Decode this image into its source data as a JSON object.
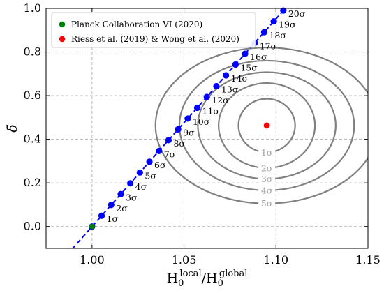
{
  "chart_data": {
    "type": "scatter",
    "xlabel": {
      "base": "H",
      "sub": "0",
      "sup_num": "local",
      "slash": "/",
      "sup_den": "global"
    },
    "ylabel": "δ̃",
    "xlim": [
      0.975,
      1.15
    ],
    "ylim": [
      -0.1,
      1.0
    ],
    "x_ticks": [
      1.0,
      1.05,
      1.1,
      1.15
    ],
    "x_tick_labels": [
      "1.00",
      "1.05",
      "1.10",
      "1.15"
    ],
    "y_ticks": [
      0.0,
      0.2,
      0.4,
      0.6,
      0.8,
      1.0
    ],
    "y_tick_labels": [
      "0.0",
      "0.2",
      "0.4",
      "0.6",
      "0.8",
      "1.0"
    ],
    "grid": true,
    "legend_position": "top-left",
    "legend": [
      {
        "label": "Planck Collaboration VI (2020)",
        "color": "#008000"
      },
      {
        "label": "Riess et al. (2019) & Wong et al. (2020)",
        "color": "#ff0000"
      }
    ],
    "planck_point": {
      "x": 1.0,
      "y": 0.0,
      "color": "#008000"
    },
    "shoes_point": {
      "x": 1.095,
      "y": 0.463,
      "color": "#ff0000"
    },
    "line": {
      "color": "#0000ff",
      "style": "dashed",
      "x_range": [
        0.989,
        1.108
      ],
      "slope": 9.52,
      "intercept": -9.52
    },
    "sigma_points": [
      {
        "x": 1.0,
        "y": 0.0,
        "label": ""
      },
      {
        "x": 1.0052,
        "y": 0.0495,
        "label": "1σ"
      },
      {
        "x": 1.0104,
        "y": 0.099,
        "label": "2σ"
      },
      {
        "x": 1.0156,
        "y": 0.1485,
        "label": "3σ"
      },
      {
        "x": 1.0208,
        "y": 0.198,
        "label": "4σ"
      },
      {
        "x": 1.026,
        "y": 0.2475,
        "label": "5σ"
      },
      {
        "x": 1.0312,
        "y": 0.297,
        "label": "6σ"
      },
      {
        "x": 1.0364,
        "y": 0.3465,
        "label": "7σ"
      },
      {
        "x": 1.0416,
        "y": 0.396,
        "label": "8σ"
      },
      {
        "x": 1.0468,
        "y": 0.4455,
        "label": "9σ"
      },
      {
        "x": 1.052,
        "y": 0.495,
        "label": "10σ"
      },
      {
        "x": 1.0572,
        "y": 0.5445,
        "label": "11σ"
      },
      {
        "x": 1.0624,
        "y": 0.594,
        "label": "12σ"
      },
      {
        "x": 1.0676,
        "y": 0.6435,
        "label": "13σ"
      },
      {
        "x": 1.0728,
        "y": 0.693,
        "label": "14σ"
      },
      {
        "x": 1.078,
        "y": 0.7425,
        "label": "15σ"
      },
      {
        "x": 1.0832,
        "y": 0.792,
        "label": "16σ"
      },
      {
        "x": 1.0884,
        "y": 0.8415,
        "label": "17σ"
      },
      {
        "x": 1.0936,
        "y": 0.891,
        "label": "18σ"
      },
      {
        "x": 1.0988,
        "y": 0.9405,
        "label": "19σ"
      },
      {
        "x": 1.104,
        "y": 0.99,
        "label": "20σ"
      }
    ],
    "contours": {
      "center": {
        "x": 1.095,
        "y": 0.463
      },
      "color": "#808080",
      "levels": [
        {
          "label": "1σ",
          "rx": 0.0154,
          "ry": 0.1226
        },
        {
          "label": "2σ",
          "rx": 0.0262,
          "ry": 0.1945
        },
        {
          "label": "3σ",
          "rx": 0.0375,
          "ry": 0.2445
        },
        {
          "label": "4σ",
          "rx": 0.0475,
          "ry": 0.2973
        },
        {
          "label": "5σ",
          "rx": 0.0605,
          "ry": 0.3573
        }
      ]
    }
  }
}
